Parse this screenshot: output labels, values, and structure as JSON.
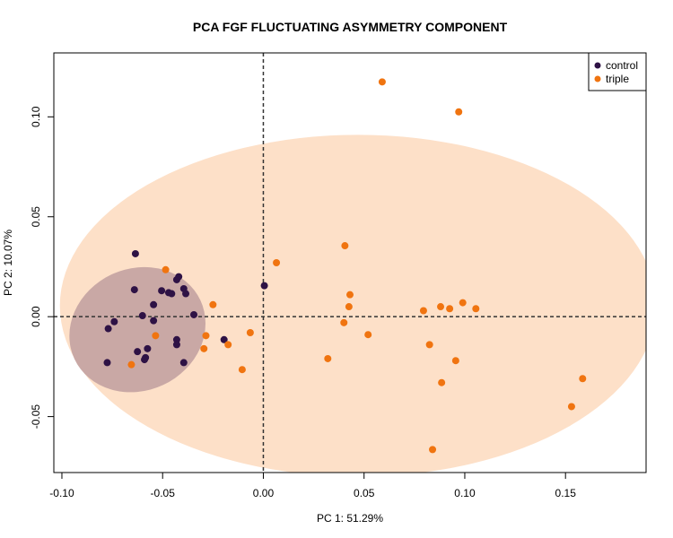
{
  "chart_data": {
    "type": "scatter",
    "title": "PCA FGF FLUCTUATING ASYMMETRY COMPONENT",
    "xlabel": "PC 1: 51.29%",
    "ylabel": "PC 2: 10.07%",
    "xlim": [
      -0.104,
      0.19
    ],
    "ylim": [
      -0.078,
      0.132
    ],
    "xticks": [
      -0.1,
      -0.05,
      0.0,
      0.05,
      0.1,
      0.15
    ],
    "xtick_labels": [
      "-0.10",
      "-0.05",
      "0.00",
      "0.05",
      "0.10",
      "0.15"
    ],
    "yticks": [
      -0.05,
      0.0,
      0.05,
      0.1
    ],
    "ytick_labels": [
      "-0.05",
      "0.00",
      "0.05",
      "0.10"
    ],
    "reference_lines": {
      "x": 0,
      "y": 0,
      "style": "dashed"
    },
    "legend_position": "top-right",
    "ellipses": [
      {
        "group": "triple",
        "cx": 0.047,
        "cy": 0.0055,
        "rx": 0.148,
        "ry": 0.0855,
        "rotation_deg": 0,
        "color": "#fde0c8"
      },
      {
        "group": "control",
        "cx": -0.0625,
        "cy": -0.0065,
        "rx": 0.0345,
        "ry": 0.0305,
        "rotation_deg": -25,
        "color": "#c9a8a5"
      }
    ],
    "series": [
      {
        "name": "control",
        "color": "#2e1245",
        "points": [
          [
            -0.0635,
            0.0315
          ],
          [
            -0.064,
            0.0135
          ],
          [
            -0.0505,
            0.013
          ],
          [
            -0.047,
            0.012
          ],
          [
            -0.0455,
            0.0115
          ],
          [
            -0.043,
            0.0185
          ],
          [
            -0.042,
            0.02
          ],
          [
            -0.0395,
            0.014
          ],
          [
            -0.0385,
            0.0115
          ],
          [
            -0.0545,
            0.006
          ],
          [
            -0.06,
            0.0005
          ],
          [
            -0.0545,
            -0.002
          ],
          [
            -0.074,
            -0.0025
          ],
          [
            -0.077,
            -0.006
          ],
          [
            -0.0345,
            0.001
          ],
          [
            -0.043,
            -0.0115
          ],
          [
            -0.043,
            -0.014
          ],
          [
            -0.0625,
            -0.0175
          ],
          [
            -0.0575,
            -0.016
          ],
          [
            -0.0585,
            -0.0205
          ],
          [
            -0.059,
            -0.0215
          ],
          [
            -0.0775,
            -0.023
          ],
          [
            -0.0395,
            -0.023
          ],
          [
            -0.0195,
            -0.0115
          ],
          [
            0.0005,
            0.0155
          ]
        ]
      },
      {
        "name": "triple",
        "color": "#f07410",
        "points": [
          [
            0.059,
            0.1175
          ],
          [
            0.097,
            0.1025
          ],
          [
            0.0405,
            0.0355
          ],
          [
            0.0065,
            0.027
          ],
          [
            -0.0485,
            0.0235
          ],
          [
            0.043,
            0.011
          ],
          [
            0.0425,
            0.005
          ],
          [
            0.099,
            0.007
          ],
          [
            0.088,
            0.005
          ],
          [
            0.0925,
            0.004
          ],
          [
            0.1055,
            0.004
          ],
          [
            0.0795,
            0.003
          ],
          [
            -0.025,
            0.006
          ],
          [
            0.04,
            -0.003
          ],
          [
            -0.0065,
            -0.008
          ],
          [
            0.052,
            -0.009
          ],
          [
            -0.0535,
            -0.0095
          ],
          [
            -0.0285,
            -0.0095
          ],
          [
            -0.0175,
            -0.014
          ],
          [
            -0.0295,
            -0.016
          ],
          [
            0.0825,
            -0.014
          ],
          [
            0.032,
            -0.021
          ],
          [
            0.0955,
            -0.022
          ],
          [
            -0.0655,
            -0.024
          ],
          [
            -0.0105,
            -0.0265
          ],
          [
            0.0885,
            -0.033
          ],
          [
            0.1585,
            -0.031
          ],
          [
            0.153,
            -0.045
          ],
          [
            0.084,
            -0.0665
          ]
        ]
      }
    ]
  }
}
